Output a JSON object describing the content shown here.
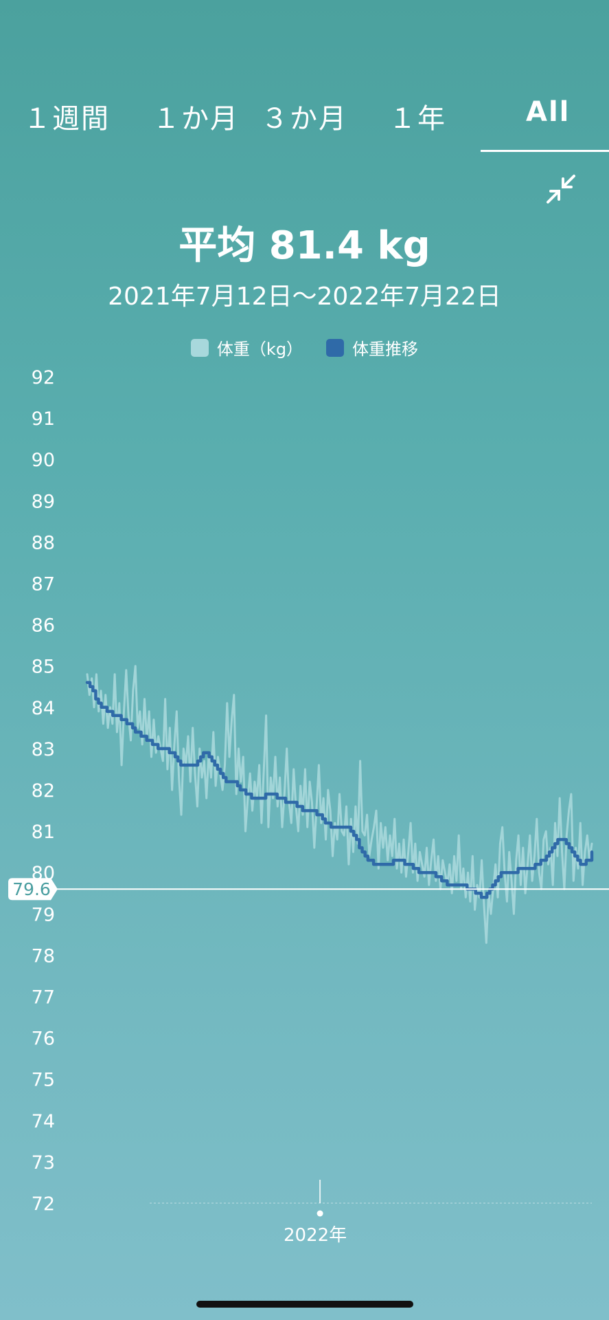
{
  "tabs": [
    {
      "label": "１週間",
      "active": false
    },
    {
      "label": "１か月",
      "active": false
    },
    {
      "label": "３か月",
      "active": false
    },
    {
      "label": "１年",
      "active": false
    },
    {
      "label": "All",
      "active": true
    }
  ],
  "header": {
    "average": "平均 81.4 kg",
    "date_range": "2021年7月12日～2022年7月22日"
  },
  "icons": {
    "collapse": "collapse-arrows-icon"
  },
  "colors": {
    "raw": "#a8d8dc",
    "trend": "#2f6aa8",
    "text": "#ffffff"
  },
  "chart_data": {
    "type": "line",
    "ylim": [
      72,
      92
    ],
    "yticks": [
      "92",
      "91",
      "90",
      "89",
      "88",
      "87",
      "86",
      "85",
      "84",
      "83",
      "82",
      "81",
      "80",
      "79",
      "78",
      "77",
      "76",
      "75",
      "74",
      "73",
      "72"
    ],
    "xlim": [
      "2021-07-12",
      "2022-07-22"
    ],
    "xticks": [
      {
        "date": "2022-01-01",
        "label": "2022年"
      }
    ],
    "reference_line": {
      "value": 79.6,
      "label": "79.6"
    },
    "series": [
      {
        "name": "体重（kg）",
        "color": "#a8d8dc",
        "x_start": "2021-07-12",
        "x_end": "2022-07-22",
        "values": [
          84.8,
          84.3,
          84.7,
          84.0,
          84.8,
          83.9,
          84.4,
          83.6,
          84.3,
          83.5,
          84.0,
          83.6,
          84.8,
          83.4,
          84.1,
          82.6,
          83.9,
          84.9,
          83.8,
          83.2,
          84.4,
          85.0,
          83.5,
          83.9,
          83.1,
          84.2,
          83.2,
          83.9,
          82.8,
          83.7,
          82.9,
          83.3,
          83.0,
          82.7,
          84.2,
          82.5,
          83.5,
          82.0,
          83.1,
          83.9,
          82.3,
          81.4,
          83.0,
          82.6,
          83.3,
          82.2,
          83.5,
          82.4,
          81.6,
          83.0,
          82.3,
          82.7,
          81.8,
          82.9,
          82.3,
          83.4,
          82.1,
          82.8,
          82.4,
          82.0,
          82.6,
          84.1,
          82.8,
          83.7,
          84.3,
          81.9,
          83.0,
          82.2,
          82.8,
          81.0,
          81.8,
          82.4,
          81.5,
          82.2,
          81.8,
          82.6,
          81.2,
          82.5,
          83.8,
          81.1,
          82.3,
          81.8,
          82.8,
          81.6,
          82.3,
          81.1,
          81.9,
          83.0,
          81.7,
          81.2,
          82.5,
          81.6,
          81.0,
          82.1,
          81.4,
          82.5,
          81.1,
          82.2,
          81.7,
          80.6,
          81.6,
          82.6,
          81.2,
          81.8,
          80.8,
          82.0,
          81.5,
          80.4,
          81.2,
          80.8,
          81.9,
          81.0,
          80.9,
          81.6,
          80.2,
          81.3,
          80.5,
          81.6,
          80.7,
          82.7,
          81.0,
          80.9,
          81.4,
          80.4,
          80.8,
          81.1,
          81.5,
          80.1,
          81.2,
          80.6,
          81.1,
          80.3,
          80.9,
          80.4,
          81.3,
          80.1,
          80.7,
          80.0,
          80.8,
          79.9,
          80.5,
          81.2,
          80.0,
          80.7,
          79.8,
          80.5,
          80.2,
          79.9,
          80.6,
          79.7,
          80.3,
          80.8,
          79.8,
          80.4,
          79.6,
          80.3,
          80.0,
          79.7,
          80.2,
          79.5,
          80.4,
          79.8,
          80.9,
          79.6,
          80.1,
          79.4,
          80.0,
          79.3,
          80.4,
          79.1,
          79.7,
          79.4,
          80.3,
          79.2,
          78.3,
          79.5,
          79.0,
          79.6,
          80.2,
          79.4,
          80.7,
          81.1,
          80.0,
          79.3,
          80.5,
          79.8,
          79.0,
          80.3,
          80.9,
          79.7,
          80.6,
          79.5,
          80.2,
          80.9,
          79.8,
          80.4,
          81.3,
          80.0,
          79.6,
          80.8,
          81.0,
          80.2,
          80.6,
          79.7,
          81.2,
          80.4,
          81.8,
          80.5,
          79.6,
          80.9,
          81.5,
          81.9,
          79.8,
          80.6,
          80.1,
          81.2,
          79.7,
          80.5,
          80.9,
          80.3,
          80.7
        ]
      },
      {
        "name": "体重推移",
        "color": "#2f6aa8",
        "x_start": "2021-07-12",
        "x_end": "2022-07-22",
        "values": [
          84.6,
          84.5,
          84.4,
          84.2,
          84.1,
          84.0,
          84.0,
          83.9,
          83.9,
          83.8,
          83.8,
          83.8,
          83.7,
          83.7,
          83.6,
          83.6,
          83.5,
          83.4,
          83.4,
          83.3,
          83.3,
          83.2,
          83.2,
          83.1,
          83.1,
          83.0,
          83.0,
          83.0,
          83.0,
          82.9,
          82.9,
          82.8,
          82.7,
          82.6,
          82.6,
          82.6,
          82.6,
          82.6,
          82.6,
          82.7,
          82.8,
          82.9,
          82.9,
          82.8,
          82.7,
          82.6,
          82.5,
          82.4,
          82.3,
          82.2,
          82.2,
          82.2,
          82.2,
          82.1,
          82.0,
          82.0,
          81.9,
          81.9,
          81.8,
          81.8,
          81.8,
          81.8,
          81.8,
          81.9,
          81.9,
          81.9,
          81.9,
          81.8,
          81.8,
          81.8,
          81.7,
          81.7,
          81.7,
          81.7,
          81.6,
          81.6,
          81.5,
          81.5,
          81.5,
          81.5,
          81.5,
          81.4,
          81.4,
          81.3,
          81.2,
          81.2,
          81.1,
          81.1,
          81.1,
          81.1,
          81.1,
          81.1,
          81.1,
          81.0,
          80.9,
          80.8,
          80.6,
          80.5,
          80.4,
          80.3,
          80.3,
          80.2,
          80.2,
          80.2,
          80.2,
          80.2,
          80.2,
          80.2,
          80.3,
          80.3,
          80.3,
          80.3,
          80.2,
          80.2,
          80.2,
          80.1,
          80.1,
          80.0,
          80.0,
          80.0,
          80.0,
          80.0,
          80.0,
          79.9,
          79.9,
          79.8,
          79.8,
          79.7,
          79.7,
          79.7,
          79.7,
          79.7,
          79.7,
          79.7,
          79.6,
          79.6,
          79.6,
          79.5,
          79.5,
          79.4,
          79.4,
          79.5,
          79.6,
          79.7,
          79.8,
          79.9,
          80.0,
          80.0,
          80.0,
          80.0,
          80.0,
          80.0,
          80.1,
          80.1,
          80.1,
          80.1,
          80.1,
          80.1,
          80.2,
          80.2,
          80.3,
          80.3,
          80.4,
          80.5,
          80.6,
          80.7,
          80.8,
          80.8,
          80.8,
          80.7,
          80.6,
          80.5,
          80.4,
          80.3,
          80.2,
          80.2,
          80.3,
          80.3,
          80.5
        ]
      }
    ]
  }
}
